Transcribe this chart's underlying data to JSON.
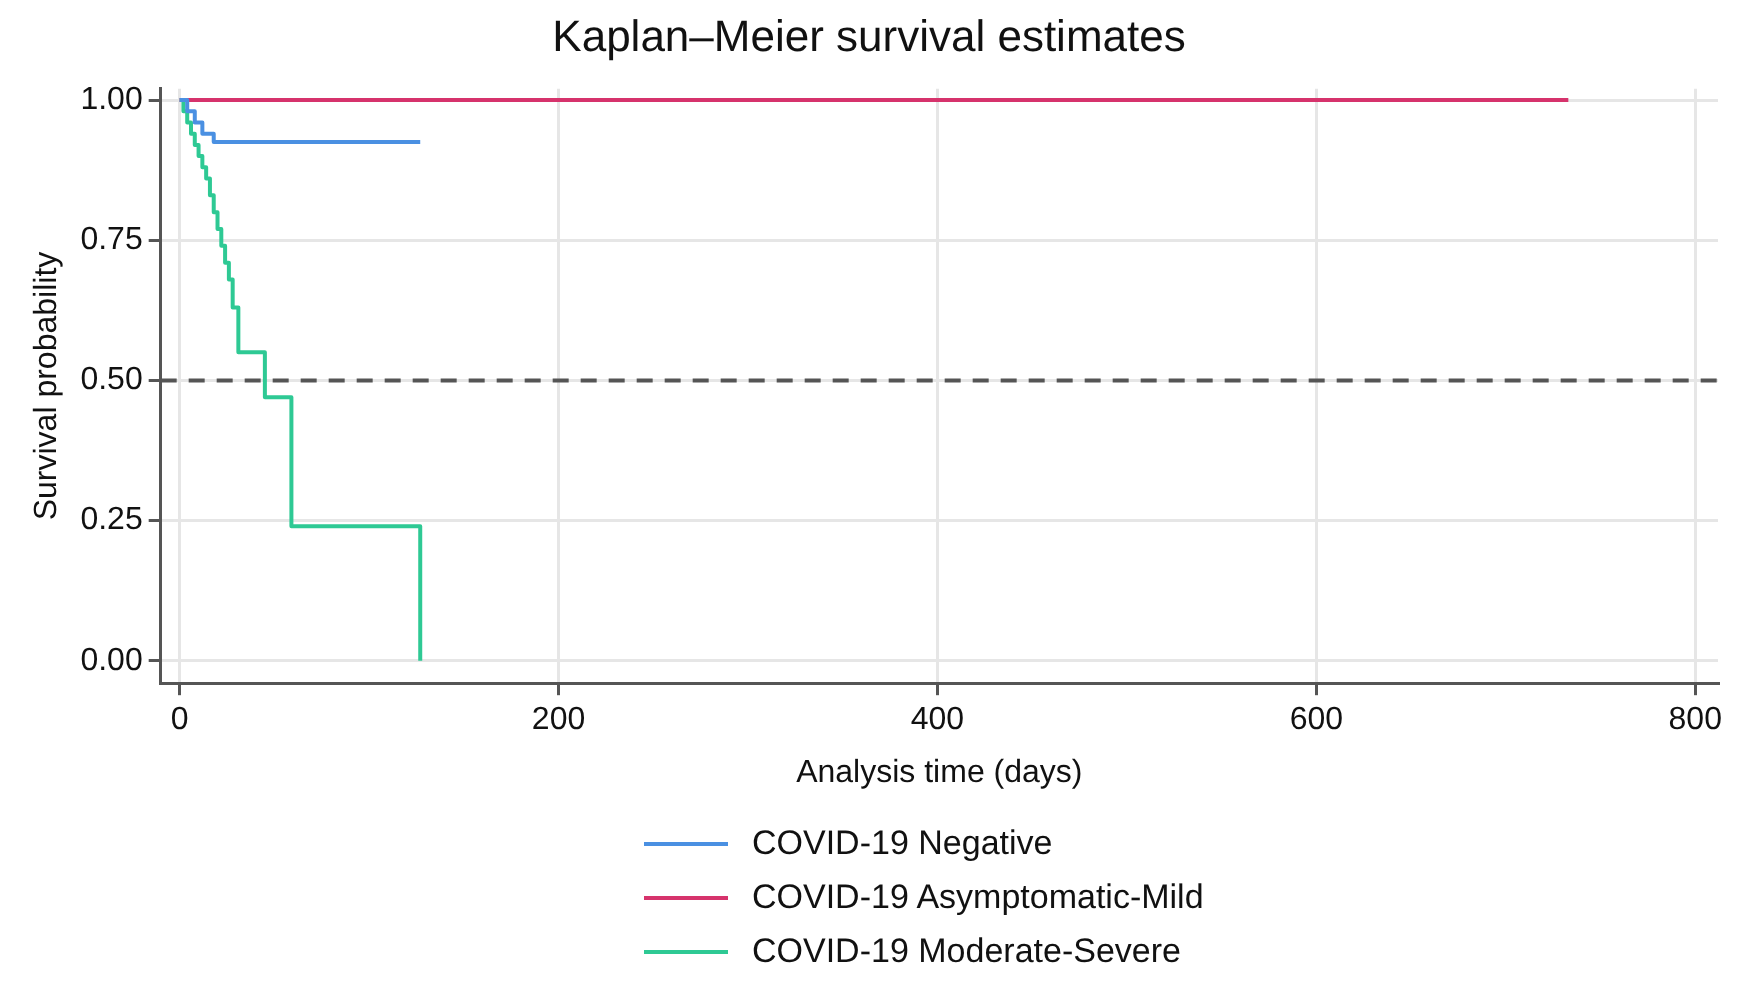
{
  "chart_data": {
    "type": "step",
    "title": "Kaplan–Meier survival estimates",
    "xlabel": "Analysis time (days)",
    "ylabel": "Survival probability",
    "xlim": [
      -10,
      812
    ],
    "xticks": [
      0,
      200,
      400,
      600,
      800
    ],
    "ylim": [
      -0.04,
      1.02
    ],
    "yticks": [
      {
        "value": 0,
        "label": "0.00"
      },
      {
        "value": 0.25,
        "label": "0.25"
      },
      {
        "value": 0.5,
        "label": "0.50"
      },
      {
        "value": 0.75,
        "label": "0.75"
      },
      {
        "value": 1,
        "label": "1.00"
      }
    ],
    "grid": true,
    "legend": "bottom",
    "line_style": "solid",
    "marker": "none",
    "ref_lines": [
      {
        "axis": "y",
        "value": 0.5,
        "color": "#555555",
        "line_style": "dashed"
      }
    ],
    "series": [
      {
        "name": "COVID-19 Negative",
        "color": "#4a90e2",
        "x": [
          0,
          4,
          8,
          12,
          18,
          127
        ],
        "values": [
          1,
          0.98,
          0.96,
          0.94,
          0.925,
          0.925
        ]
      },
      {
        "name": "COVID-19 Asymptomatic-Mild",
        "color": "#d6336c",
        "x": [
          0,
          733
        ],
        "values": [
          1,
          1
        ]
      },
      {
        "name": "COVID-19 Moderate-Severe",
        "color": "#2ec994",
        "x": [
          0,
          2,
          4,
          6,
          8,
          10,
          12,
          14,
          16,
          18,
          20,
          22,
          24,
          26,
          28,
          31,
          45,
          59,
          127,
          127
        ],
        "values": [
          1,
          0.98,
          0.96,
          0.94,
          0.92,
          0.9,
          0.88,
          0.86,
          0.83,
          0.8,
          0.77,
          0.74,
          0.71,
          0.68,
          0.63,
          0.55,
          0.47,
          0.24,
          0.24,
          0
        ]
      }
    ]
  }
}
